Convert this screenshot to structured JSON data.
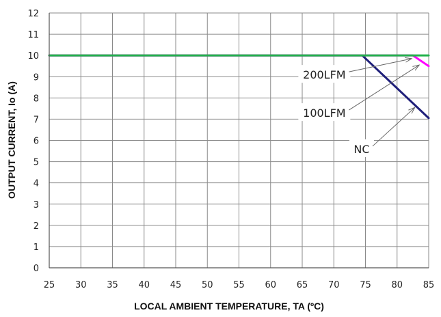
{
  "chart_data": {
    "type": "line",
    "xlabel": "LOCAL AMBIENT TEMPERATURE, TA (ºC)",
    "ylabel": "OUTPUT CURRENT, Io (A)",
    "xlim": [
      25,
      85
    ],
    "ylim": [
      0,
      12
    ],
    "x_ticks": [
      25,
      30,
      35,
      40,
      45,
      50,
      55,
      60,
      65,
      70,
      75,
      80,
      85
    ],
    "y_ticks": [
      0,
      1,
      2,
      3,
      4,
      5,
      6,
      7,
      8,
      9,
      10,
      11,
      12
    ],
    "grid": true,
    "series": [
      {
        "name": "200LFM",
        "color": "#22b14c",
        "x": [
          25,
          85
        ],
        "y": [
          10,
          10
        ]
      },
      {
        "name": "100LFM",
        "color": "#ff00ff",
        "x": [
          25,
          82.5,
          85
        ],
        "y": [
          10,
          10,
          9.5
        ]
      },
      {
        "name": "NC",
        "color": "#1f1f7a",
        "x": [
          25,
          74.5,
          85
        ],
        "y": [
          10,
          10,
          7.05
        ]
      }
    ],
    "annotations": [
      {
        "text": "200LFM",
        "x": 68.5,
        "y": 9.1,
        "target_x": 82.3,
        "target_y": 9.85
      },
      {
        "text": "100LFM",
        "x": 68.5,
        "y": 7.3,
        "target_x": 83.5,
        "target_y": 9.55
      },
      {
        "text": "NC",
        "x": 74.4,
        "y": 5.6,
        "target_x": 82.8,
        "target_y": 7.55
      }
    ]
  }
}
